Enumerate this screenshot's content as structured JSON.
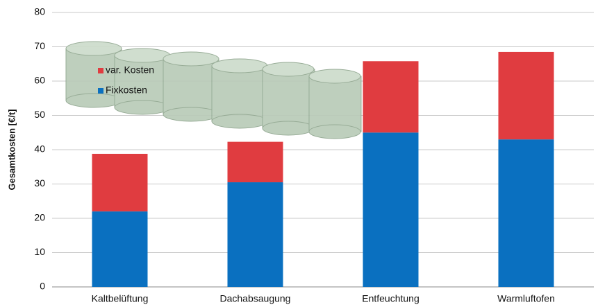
{
  "chart_data": {
    "type": "stacked_bar",
    "y_label": "Gesamtkosten [€/t]",
    "categories": [
      "Kaltbelüftung",
      "Dachabsaugung",
      "Entfeuchtung",
      "Warmluftofen"
    ],
    "series": [
      {
        "name": "Fixkosten",
        "color": "#0a70c0",
        "values": [
          22,
          30.5,
          45,
          43
        ]
      },
      {
        "name": "var. Kosten",
        "color": "#e03c40",
        "values": [
          16.8,
          11.8,
          20.8,
          25.5
        ]
      }
    ],
    "ylim": [
      0,
      80
    ],
    "yticks": [
      0,
      10,
      20,
      30,
      40,
      50,
      60,
      70,
      80
    ],
    "grid": true
  }
}
